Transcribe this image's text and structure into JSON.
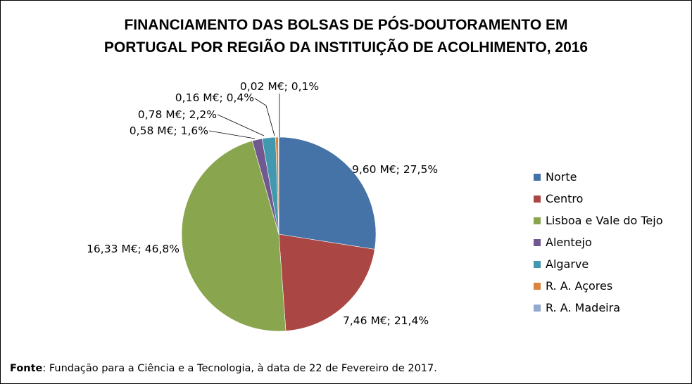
{
  "chart_data": {
    "type": "pie",
    "title_lines": [
      "FINANCIAMENTO DAS BOLSAS DE PÓS-DOUTORAMENTO EM",
      "PORTUGAL POR REGIÃO DA INSTITUIÇÃO DE ACOLHIMENTO, 2016"
    ],
    "slices": [
      {
        "name": "Norte",
        "value": 9.6,
        "percent": 27.5,
        "label": "9,60 M€; 27,5%",
        "color": "#4572a7"
      },
      {
        "name": "Centro",
        "value": 7.46,
        "percent": 21.4,
        "label": "7,46 M€; 21,4%",
        "color": "#aa4643"
      },
      {
        "name": "Lisboa e Vale do Tejo",
        "value": 16.33,
        "percent": 46.8,
        "label": "16,33 M€; 46,8%",
        "color": "#89a54e"
      },
      {
        "name": "Alentejo",
        "value": 0.58,
        "percent": 1.6,
        "label": "0,58 M€; 1,6%",
        "color": "#71588f"
      },
      {
        "name": "Algarve",
        "value": 0.78,
        "percent": 2.2,
        "label": "0,78 M€; 2,2%",
        "color": "#4198af"
      },
      {
        "name": "R. A. Açores",
        "value": 0.16,
        "percent": 0.4,
        "label": "0,16 M€; 0,4%",
        "color": "#db843d"
      },
      {
        "name": "R. A. Madeira",
        "value": 0.02,
        "percent": 0.1,
        "label": "0,02 M€; 0,1%",
        "color": "#93a9cf"
      }
    ],
    "legend_position": "right"
  },
  "source": {
    "label": "Fonte",
    "text": ": Fundação para a Ciência e a Tecnologia, à data de 22 de Fevereiro de 2017."
  }
}
